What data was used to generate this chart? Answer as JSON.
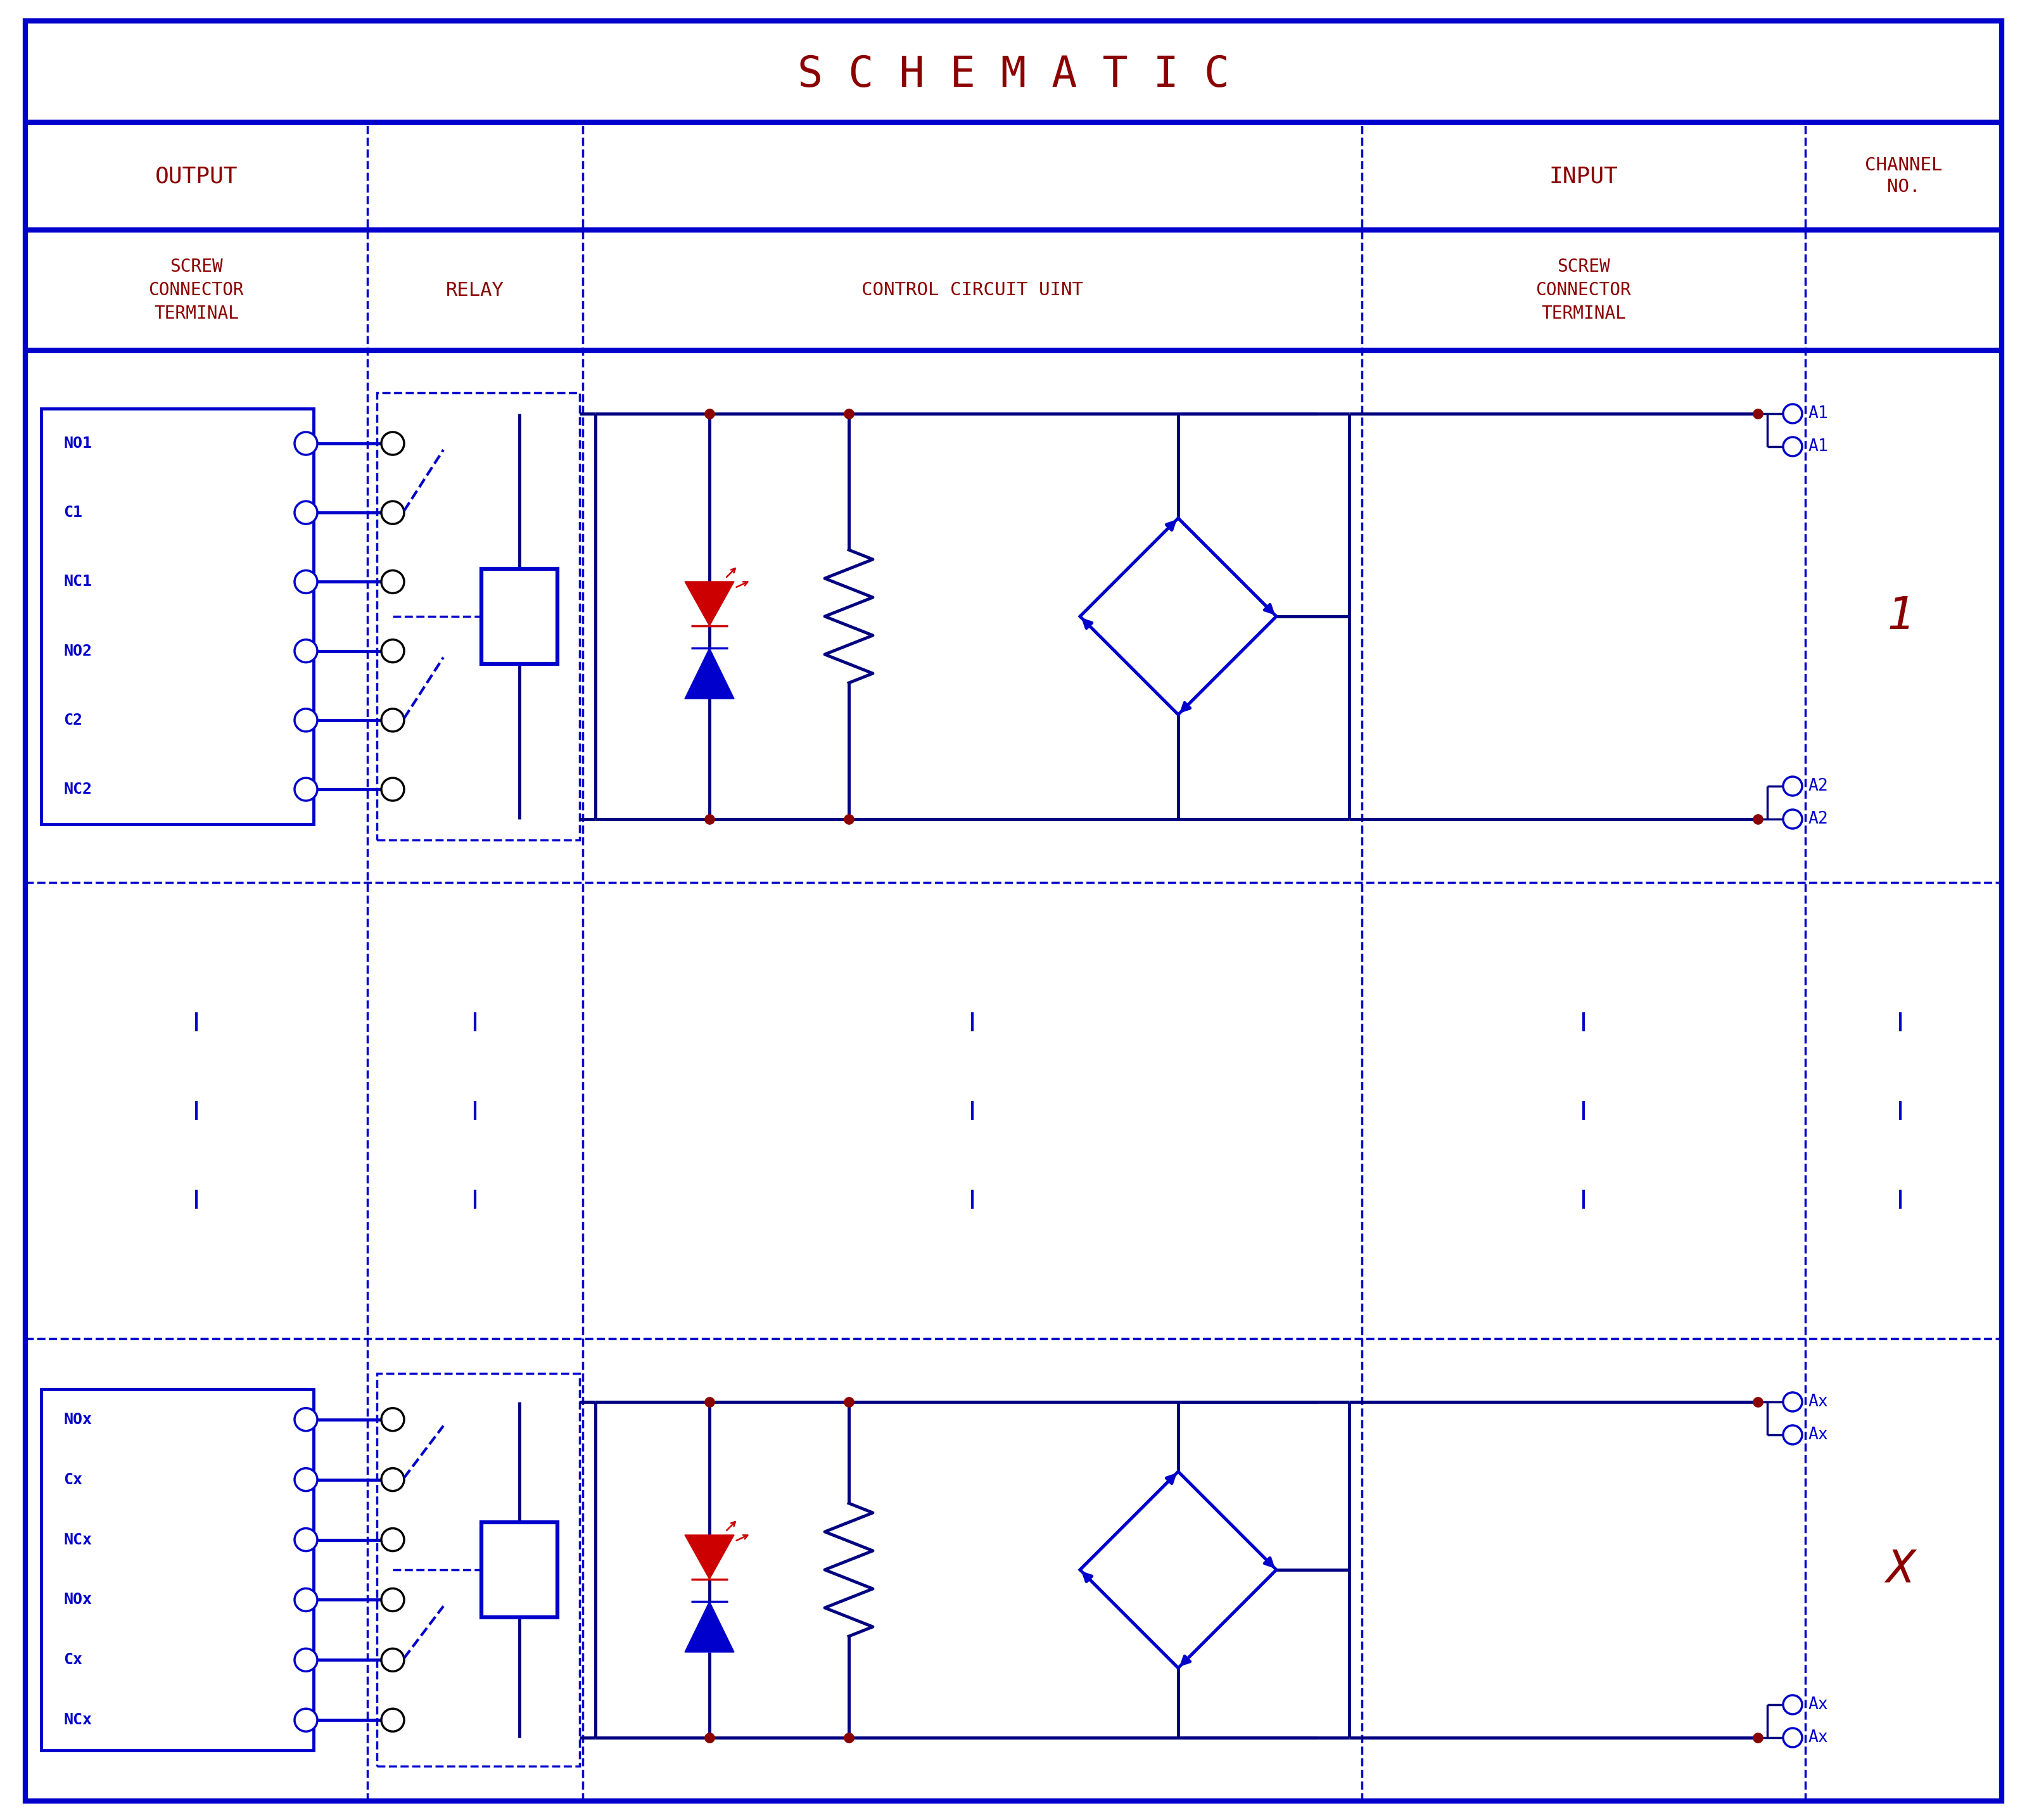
{
  "title": "S C H E M A T I C",
  "title_color": "#8B0000",
  "title_fontsize": 48,
  "border_color": "#0000CC",
  "blue_color": "#0000CC",
  "dark_red": "#8B0000",
  "red_color": "#CC0000",
  "navy": "#000080",
  "background": "#FFFFFF",
  "col_labels1": [
    "NO1",
    "C1",
    "NC1",
    "NO2",
    "C2",
    "NC2"
  ],
  "col_labels_x": [
    "NOx",
    "Cx",
    "NCx",
    "NOx",
    "Cx",
    "NCx"
  ],
  "channel1": "1",
  "channelX": "X",
  "a_labels1": [
    "A1",
    "A1",
    "A2",
    "A2"
  ],
  "a_labels_x": [
    "Ax",
    "Ax",
    "Ax",
    "Ax"
  ],
  "header_out": "OUTPUT",
  "header_relay": "RELAY",
  "header_ctrl": "CONTROL CIRCUIT UINT",
  "header_input": "INPUT",
  "header_channel": "CHANNEL\nNO.",
  "header_screw": "SCREW\nCONNECTOR\nTERMINAL"
}
